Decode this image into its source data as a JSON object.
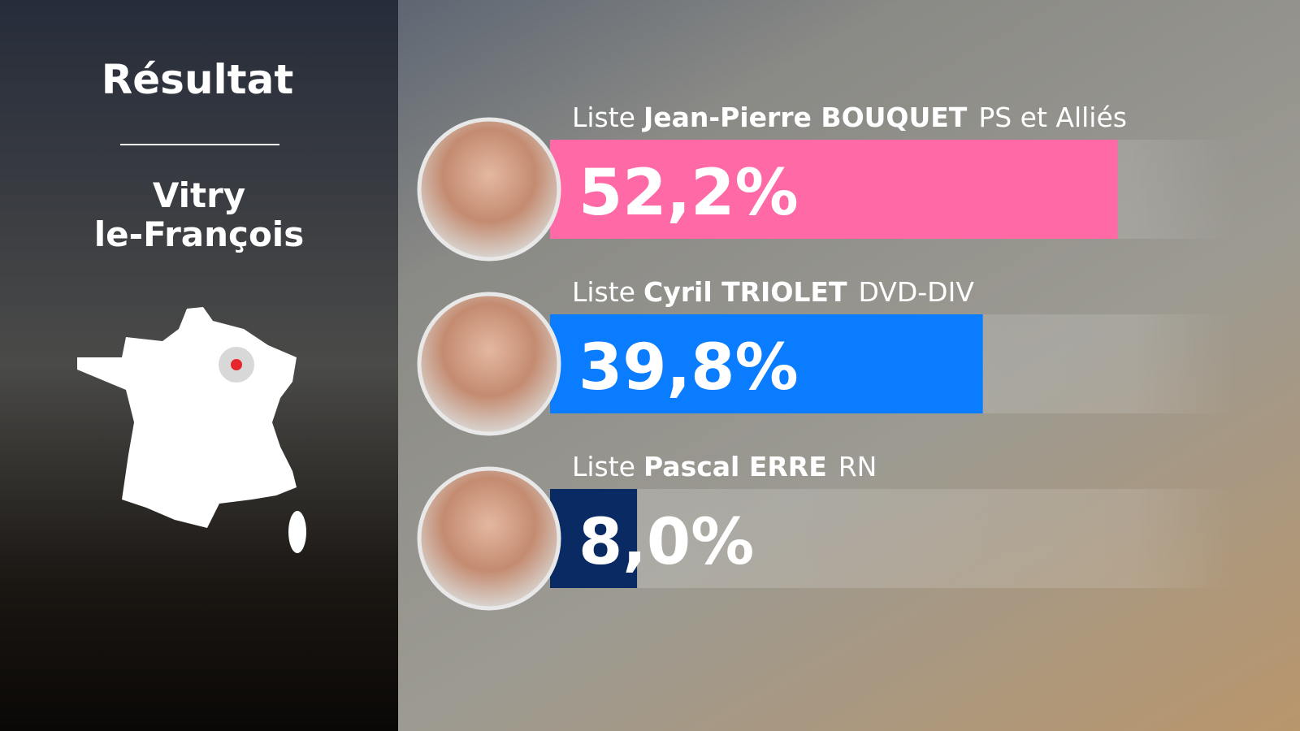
{
  "chart_data": {
    "type": "bar",
    "orientation": "horizontal",
    "title": "Résultat",
    "location": [
      "Vitry",
      "le-François"
    ],
    "category_prefix": "Liste",
    "categories": [
      "Jean-Pierre BOUQUET",
      "Cyril TRIOLET",
      "Pascal ERRE"
    ],
    "parties": [
      "PS et Alliés",
      "DVD-DIV",
      "RN"
    ],
    "values": [
      52.2,
      39.8,
      8.0
    ],
    "value_labels": [
      "52,2%",
      "39,8%",
      "8,0%"
    ],
    "colors": [
      "#ff6aa6",
      "#0a7cff",
      "#0a2a63"
    ],
    "xlim": [
      0,
      60
    ]
  }
}
